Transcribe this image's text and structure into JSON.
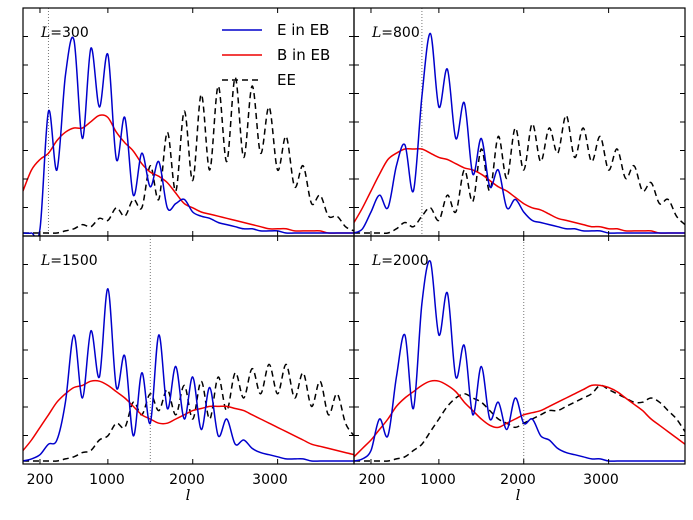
{
  "chart_data": {
    "type": "line",
    "xlabel": "l",
    "x_ticks": [
      200,
      1000,
      2000,
      3000
    ],
    "xlim": [
      0,
      3900
    ],
    "ylim": [
      0,
      1.0
    ],
    "legend": {
      "placement": "top-right of first panel",
      "entries": [
        {
          "key": "E",
          "label": "E in EB",
          "color": "#0000cc",
          "dash": "solid"
        },
        {
          "key": "B",
          "label": "B in EB",
          "color": "#ee0000",
          "dash": "solid"
        },
        {
          "key": "EE",
          "label": "EE",
          "color": "#000000",
          "dash": "dashed"
        }
      ]
    },
    "x": [
      0,
      100,
      200,
      300,
      400,
      500,
      600,
      700,
      800,
      900,
      1000,
      1100,
      1200,
      1300,
      1400,
      1500,
      1600,
      1700,
      1800,
      1900,
      2000,
      2100,
      2200,
      2300,
      2400,
      2500,
      2600,
      2700,
      2800,
      2900,
      3000,
      3100,
      3200,
      3300,
      3400,
      3500,
      3600,
      3700,
      3800,
      3900
    ],
    "panels": [
      {
        "label_prefix": "L",
        "label_value": "=300",
        "L": 300,
        "series": {
          "E": [
            0,
            0,
            0.02,
            0.58,
            0.3,
            0.75,
            0.92,
            0.45,
            0.88,
            0.6,
            0.85,
            0.35,
            0.55,
            0.18,
            0.38,
            0.22,
            0.34,
            0.12,
            0.14,
            0.16,
            0.1,
            0.08,
            0.07,
            0.05,
            0.04,
            0.03,
            0.02,
            0.02,
            0.01,
            0.01,
            0.01,
            0.0,
            0.0,
            0.0,
            0.0,
            0.0,
            0.0,
            0.0,
            0.0,
            0.0
          ],
          "B": [
            0.2,
            0.3,
            0.35,
            0.38,
            0.44,
            0.48,
            0.5,
            0.5,
            0.53,
            0.56,
            0.55,
            0.48,
            0.43,
            0.39,
            0.33,
            0.29,
            0.27,
            0.24,
            0.19,
            0.14,
            0.12,
            0.1,
            0.09,
            0.08,
            0.07,
            0.06,
            0.05,
            0.04,
            0.03,
            0.02,
            0.02,
            0.02,
            0.01,
            0.01,
            0.01,
            0.01,
            0.0,
            0.0,
            0.0,
            0.0
          ],
          "EE": [
            0,
            0,
            0,
            0,
            0,
            0.01,
            0.02,
            0.04,
            0.03,
            0.07,
            0.06,
            0.12,
            0.08,
            0.16,
            0.12,
            0.32,
            0.16,
            0.48,
            0.2,
            0.58,
            0.25,
            0.66,
            0.3,
            0.7,
            0.34,
            0.74,
            0.36,
            0.7,
            0.38,
            0.6,
            0.3,
            0.46,
            0.22,
            0.32,
            0.14,
            0.18,
            0.08,
            0.08,
            0.03,
            0.01
          ]
        }
      },
      {
        "label_prefix": "L",
        "label_value": "=800",
        "L": 800,
        "series": {
          "E": [
            0,
            0.02,
            0.1,
            0.18,
            0.12,
            0.32,
            0.42,
            0.2,
            0.65,
            0.95,
            0.6,
            0.78,
            0.45,
            0.62,
            0.28,
            0.45,
            0.22,
            0.3,
            0.12,
            0.16,
            0.1,
            0.06,
            0.05,
            0.04,
            0.03,
            0.02,
            0.02,
            0.01,
            0.01,
            0.01,
            0.0,
            0.0,
            0.0,
            0.0,
            0.0,
            0.0,
            0.0,
            0.0,
            0.0,
            0.0
          ],
          "B": [
            0.05,
            0.12,
            0.2,
            0.28,
            0.35,
            0.38,
            0.4,
            0.4,
            0.4,
            0.38,
            0.36,
            0.35,
            0.33,
            0.31,
            0.3,
            0.28,
            0.25,
            0.22,
            0.2,
            0.17,
            0.14,
            0.12,
            0.11,
            0.09,
            0.07,
            0.06,
            0.05,
            0.04,
            0.03,
            0.03,
            0.02,
            0.02,
            0.01,
            0.01,
            0.01,
            0.01,
            0.0,
            0.0,
            0.0,
            0.0
          ],
          "EE": [
            0,
            0,
            0,
            0,
            0,
            0.02,
            0.05,
            0.03,
            0.08,
            0.12,
            0.06,
            0.18,
            0.1,
            0.3,
            0.15,
            0.4,
            0.2,
            0.46,
            0.26,
            0.5,
            0.3,
            0.52,
            0.34,
            0.5,
            0.38,
            0.56,
            0.36,
            0.5,
            0.34,
            0.46,
            0.3,
            0.4,
            0.26,
            0.32,
            0.2,
            0.24,
            0.14,
            0.16,
            0.08,
            0.04
          ]
        }
      },
      {
        "label_prefix": "L",
        "label_value": "=1500",
        "L": 1500,
        "series": {
          "E": [
            0,
            0.01,
            0.03,
            0.08,
            0.1,
            0.28,
            0.6,
            0.3,
            0.62,
            0.4,
            0.82,
            0.35,
            0.5,
            0.12,
            0.42,
            0.18,
            0.6,
            0.25,
            0.45,
            0.2,
            0.4,
            0.15,
            0.35,
            0.12,
            0.2,
            0.08,
            0.1,
            0.06,
            0.04,
            0.03,
            0.02,
            0.01,
            0.01,
            0.01,
            0.0,
            0.0,
            0.0,
            0.0,
            0.0,
            0.0
          ],
          "B": [
            0.05,
            0.1,
            0.16,
            0.22,
            0.28,
            0.32,
            0.35,
            0.36,
            0.38,
            0.38,
            0.36,
            0.33,
            0.3,
            0.26,
            0.22,
            0.2,
            0.18,
            0.18,
            0.2,
            0.22,
            0.24,
            0.25,
            0.26,
            0.26,
            0.26,
            0.25,
            0.24,
            0.22,
            0.2,
            0.18,
            0.16,
            0.14,
            0.12,
            0.1,
            0.08,
            0.07,
            0.06,
            0.05,
            0.04,
            0.03
          ],
          "EE": [
            0,
            0,
            0,
            0,
            0,
            0.01,
            0.02,
            0.04,
            0.05,
            0.1,
            0.12,
            0.18,
            0.16,
            0.28,
            0.22,
            0.32,
            0.24,
            0.34,
            0.22,
            0.36,
            0.2,
            0.38,
            0.2,
            0.4,
            0.24,
            0.42,
            0.3,
            0.44,
            0.32,
            0.46,
            0.32,
            0.46,
            0.3,
            0.42,
            0.26,
            0.38,
            0.22,
            0.32,
            0.18,
            0.12
          ]
        }
      },
      {
        "label_prefix": "L",
        "label_value": "=2000",
        "L": 2000,
        "series": {
          "E": [
            0,
            0.01,
            0.05,
            0.2,
            0.12,
            0.4,
            0.6,
            0.25,
            0.75,
            0.95,
            0.6,
            0.8,
            0.4,
            0.55,
            0.22,
            0.45,
            0.2,
            0.28,
            0.15,
            0.3,
            0.18,
            0.2,
            0.12,
            0.1,
            0.06,
            0.04,
            0.03,
            0.02,
            0.01,
            0.01,
            0.0,
            0.0,
            0.0,
            0.0,
            0.0,
            0.0,
            0.0,
            0.0,
            0.0,
            0.0
          ],
          "B": [
            0.02,
            0.06,
            0.1,
            0.15,
            0.2,
            0.26,
            0.3,
            0.33,
            0.36,
            0.38,
            0.38,
            0.36,
            0.33,
            0.28,
            0.24,
            0.2,
            0.17,
            0.16,
            0.18,
            0.2,
            0.22,
            0.23,
            0.24,
            0.26,
            0.28,
            0.3,
            0.32,
            0.34,
            0.36,
            0.36,
            0.35,
            0.33,
            0.3,
            0.27,
            0.24,
            0.2,
            0.17,
            0.14,
            0.11,
            0.08
          ],
          "EE": [
            0,
            0,
            0,
            0,
            0,
            0.01,
            0.02,
            0.05,
            0.08,
            0.14,
            0.2,
            0.26,
            0.3,
            0.32,
            0.3,
            0.28,
            0.24,
            0.2,
            0.18,
            0.16,
            0.18,
            0.2,
            0.22,
            0.24,
            0.24,
            0.26,
            0.28,
            0.3,
            0.32,
            0.36,
            0.34,
            0.32,
            0.3,
            0.28,
            0.28,
            0.3,
            0.28,
            0.24,
            0.2,
            0.14
          ]
        }
      }
    ]
  }
}
